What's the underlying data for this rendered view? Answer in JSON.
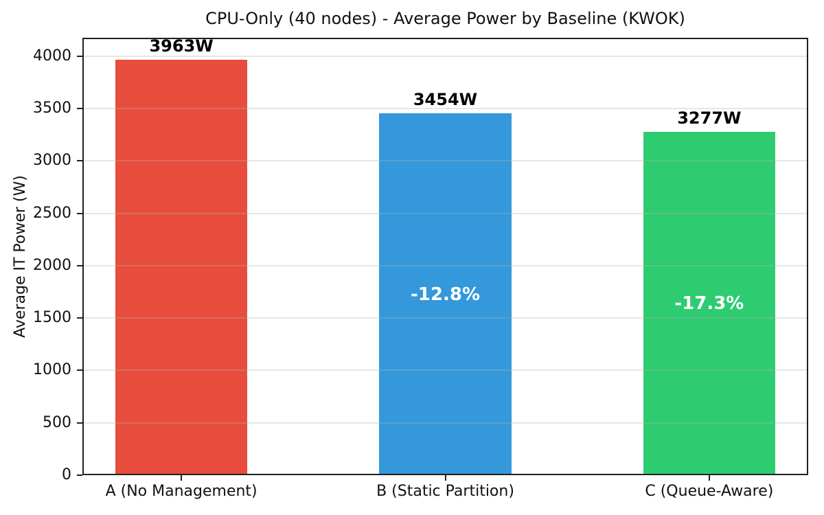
{
  "figure": {
    "title": "CPU-Only (40 nodes) - Average Power by Baseline (KWOK)",
    "ylabel": "Average IT Power (W)"
  },
  "chart_data": {
    "type": "bar",
    "title": "CPU-Only (40 nodes) - Average Power by Baseline (KWOK)",
    "xlabel": "",
    "ylabel": "Average IT Power (W)",
    "categories": [
      "A (No Management)",
      "B (Static Partition)",
      "C (Queue-Aware)"
    ],
    "values": [
      3963,
      3454,
      3277
    ],
    "bar_value_labels": [
      "3963W",
      "3454W",
      "3277W"
    ],
    "bar_inside_labels": [
      "",
      "-12.8%",
      "-17.3%"
    ],
    "bar_colors": [
      "#e74c3c",
      "#3498db",
      "#2ecc71"
    ],
    "yticks": [
      0,
      500,
      1000,
      1500,
      2000,
      2500,
      3000,
      3500,
      4000
    ],
    "ylim": [
      0,
      4175
    ],
    "grid": "horizontal, drawn above bars",
    "legend": "none",
    "colors": {
      "background": "#ffffff",
      "spine": "#1f1f1f",
      "gridline": "#b0b0b0",
      "value_label_text": "#000000",
      "inside_label_text": "#ffffff"
    }
  }
}
